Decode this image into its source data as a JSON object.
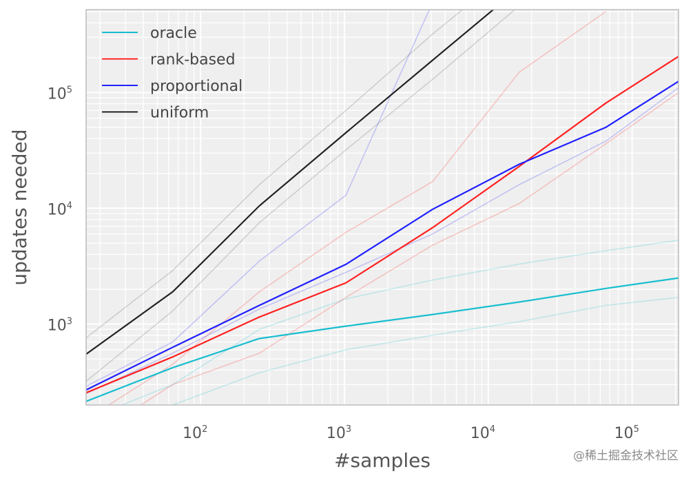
{
  "chart_data": {
    "type": "line",
    "title": "",
    "xlabel": "#samples",
    "ylabel": "updates needed",
    "xscale": "log",
    "yscale": "log",
    "xlim": [
      16,
      210000
    ],
    "ylim": [
      200,
      520000
    ],
    "grid": true,
    "legend_position": "top-left",
    "x_ticks": [
      {
        "base": "10",
        "exp": "2",
        "value": 100
      },
      {
        "base": "10",
        "exp": "3",
        "value": 1000
      },
      {
        "base": "10",
        "exp": "4",
        "value": 10000
      },
      {
        "base": "10",
        "exp": "5",
        "value": 100000
      }
    ],
    "y_ticks": [
      {
        "base": "10",
        "exp": "3",
        "value": 1000
      },
      {
        "base": "10",
        "exp": "4",
        "value": 10000
      },
      {
        "base": "10",
        "exp": "5",
        "value": 100000
      }
    ],
    "x": [
      16,
      64,
      256,
      1024,
      4096,
      16384,
      65536,
      210000
    ],
    "series": [
      {
        "name": "oracle",
        "color": "#17becf",
        "values": [
          215,
          420,
          750,
          960,
          1210,
          1550,
          2030,
          2500
        ]
      },
      {
        "name": "rank-based",
        "color": "#ff2020",
        "values": [
          255,
          520,
          1150,
          2270,
          6800,
          23000,
          81000,
          205000
        ]
      },
      {
        "name": "proportional",
        "color": "#2020ff",
        "values": [
          270,
          630,
          1450,
          3280,
          9800,
          24000,
          50000,
          125000
        ]
      },
      {
        "name": "uniform",
        "color": "#222222",
        "values": [
          550,
          1900,
          10500,
          45000,
          190000,
          800000,
          null,
          null
        ]
      }
    ],
    "bands": [
      {
        "of": "oracle",
        "color": "#17becf",
        "values": [
          150,
          300,
          900,
          1650,
          2400,
          3300,
          4300,
          5300
        ]
      },
      {
        "of": "oracle",
        "color": "#17becf",
        "values": [
          100,
          200,
          380,
          600,
          800,
          1050,
          1450,
          1700
        ]
      },
      {
        "of": "rank-based",
        "color": "#ff2020",
        "values": [
          150,
          450,
          1900,
          6200,
          17000,
          150000,
          500000,
          null
        ]
      },
      {
        "of": "rank-based",
        "color": "#ff2020",
        "values": [
          100,
          300,
          560,
          1700,
          4800,
          11000,
          36000,
          100000
        ]
      },
      {
        "of": "proportional",
        "color": "#2020ff",
        "values": [
          290,
          700,
          3500,
          13000,
          600000,
          null,
          null,
          null
        ]
      },
      {
        "of": "proportional",
        "color": "#2020ff",
        "values": [
          250,
          560,
          1350,
          2800,
          6000,
          16000,
          38000,
          110000
        ]
      },
      {
        "of": "uniform",
        "color": "#555555",
        "values": [
          760,
          2900,
          16000,
          70000,
          320000,
          1300000,
          null,
          null
        ]
      },
      {
        "of": "uniform",
        "color": "#555555",
        "values": [
          320,
          1300,
          7500,
          32000,
          130000,
          560000,
          null,
          null
        ]
      }
    ]
  },
  "watermark": "@稀土掘金技术社区"
}
